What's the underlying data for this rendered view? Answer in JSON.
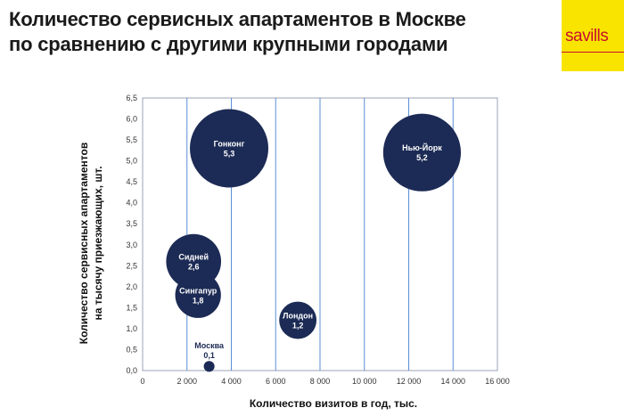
{
  "header": {
    "title_line1": "Количество сервисных апартаментов в Москве",
    "title_line2": "по сравнению с другими крупными городами",
    "logo_text": "savills",
    "logo_bg_color": "#f9e400",
    "logo_text_color": "#c8102e"
  },
  "chart_data": {
    "type": "scatter",
    "bubble": true,
    "xlabel": "Количество визитов в год, тыс.",
    "ylabel": "Количество сервисных апартаментов на тысячу приезжающих, шт.",
    "xlim": [
      0,
      16000
    ],
    "ylim": [
      0,
      6.5
    ],
    "x_ticks": [
      "0",
      "2 000",
      "4 000",
      "6 000",
      "8 000",
      "10 000",
      "12 000",
      "14 000",
      "16 000"
    ],
    "y_ticks": [
      "0,0",
      "0,5",
      "1,0",
      "1,5",
      "2,0",
      "2,5",
      "3,0",
      "3,5",
      "4,0",
      "4,5",
      "5,0",
      "5,5",
      "6,0",
      "6,5"
    ],
    "grid": "vertical",
    "bubble_color": "#1c2b55",
    "points": [
      {
        "name": "Гонконг",
        "label": "5,3",
        "x": 3900,
        "y": 5.3
      },
      {
        "name": "Нью-Йорк",
        "label": "5,2",
        "x": 12600,
        "y": 5.2
      },
      {
        "name": "Сидней",
        "label": "2,6",
        "x": 2300,
        "y": 2.6
      },
      {
        "name": "Сингапур",
        "label": "1,8",
        "x": 2500,
        "y": 1.8
      },
      {
        "name": "Лондон",
        "label": "1,2",
        "x": 7000,
        "y": 1.2
      },
      {
        "name": "Москва",
        "label": "0,1",
        "x": 3000,
        "y": 0.1
      }
    ]
  }
}
